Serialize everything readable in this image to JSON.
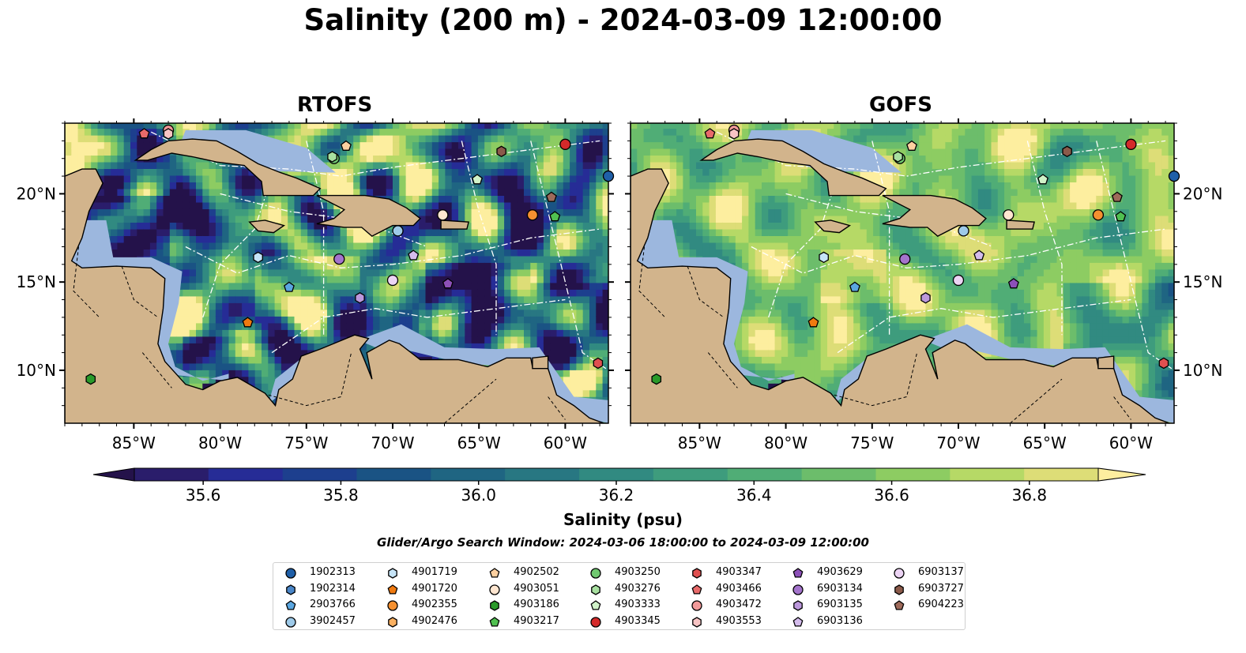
{
  "title": "Salinity (200 m) - 2024-03-09 12:00:00",
  "colors": {
    "land": "#d2b48c",
    "shallow": "#9cb7de",
    "eez_lines": "#ffffff",
    "marker_edge": "#000000"
  },
  "chart_data": [
    {
      "type": "heatmap",
      "title": "RTOFS",
      "lon_range": [
        -89,
        -57.5
      ],
      "lat_range": [
        7,
        24
      ],
      "xticks": [
        "85°W",
        "80°W",
        "75°W",
        "70°W",
        "65°W",
        "60°W"
      ],
      "yticks": [
        "20°N",
        "15°N",
        "10°N"
      ],
      "ytick_side": "left",
      "field_character": "eddy-rich, ranging ~35.5 (deep blue) to ~36.9 (yellow)"
    },
    {
      "type": "heatmap",
      "title": "GOFS",
      "lon_range": [
        -89,
        -57.5
      ],
      "lat_range": [
        7,
        24
      ],
      "xticks": [
        "85°W",
        "80°W",
        "75°W",
        "70°W",
        "65°W",
        "60°W"
      ],
      "yticks": [
        "20°N",
        "15°N",
        "10°N"
      ],
      "ytick_side": "right",
      "field_character": "smoother, mostly ~36.4–36.8 (green-yellow)"
    }
  ],
  "colorbar": {
    "label": "Salinity (psu)",
    "min": 35.5,
    "max": 36.9,
    "extend": "both",
    "ticks": [
      "35.6",
      "35.8",
      "36.0",
      "36.2",
      "36.4",
      "36.6",
      "36.8"
    ],
    "colors": [
      "#2a1d6b",
      "#262c96",
      "#1d3f8e",
      "#1a5384",
      "#1f6582",
      "#287782",
      "#318a81",
      "#3e9c7d",
      "#50ad76",
      "#6cbd6b",
      "#8dcc62",
      "#b6d966",
      "#dddd77"
    ],
    "under_color": "#24124a",
    "over_color": "#fdee9f"
  },
  "search_window": "Glider/Argo Search Window: 2024-03-06 18:00:00 to 2024-03-09 12:00:00",
  "floats": [
    {
      "id": "1902313",
      "marker": "circle",
      "color": "#1f5fa8",
      "lon": -57.5,
      "lat": 21.0
    },
    {
      "id": "1902314",
      "marker": "hexagon",
      "color": "#4a86c8",
      "lon": null,
      "lat": null
    },
    {
      "id": "2903766",
      "marker": "pentagon",
      "color": "#5aa6e0",
      "lon": -76.0,
      "lat": 14.7
    },
    {
      "id": "3902457",
      "marker": "circle",
      "color": "#9ecae9",
      "lon": -69.7,
      "lat": 17.9
    },
    {
      "id": "4901719",
      "marker": "hexagon",
      "color": "#c6e4f7",
      "lon": -77.8,
      "lat": 16.4
    },
    {
      "id": "4901720",
      "marker": "pentagon",
      "color": "#f07a10",
      "lon": -78.4,
      "lat": 12.7
    },
    {
      "id": "4902355",
      "marker": "circle",
      "color": "#f59030",
      "lon": -61.9,
      "lat": 18.8
    },
    {
      "id": "4902476",
      "marker": "hexagon",
      "color": "#fbb060",
      "lon": null,
      "lat": null
    },
    {
      "id": "4902502",
      "marker": "pentagon",
      "color": "#fdd0a0",
      "lon": -72.7,
      "lat": 22.7
    },
    {
      "id": "4903051",
      "marker": "circle",
      "color": "#ffe6d0",
      "lon": -67.1,
      "lat": 18.8
    },
    {
      "id": "4903186",
      "marker": "hexagon",
      "color": "#2a9a2a",
      "lon": -87.5,
      "lat": 9.5
    },
    {
      "id": "4903217",
      "marker": "pentagon",
      "color": "#50c050",
      "lon": -60.6,
      "lat": 18.7
    },
    {
      "id": "4903250",
      "marker": "circle",
      "color": "#70c870",
      "lon": -73.4,
      "lat": 22.0
    },
    {
      "id": "4903276",
      "marker": "hexagon",
      "color": "#a8e0a0",
      "lon": -73.5,
      "lat": 22.1
    },
    {
      "id": "4903333",
      "marker": "pentagon",
      "color": "#d0f2c8",
      "lon": -65.1,
      "lat": 20.8
    },
    {
      "id": "4903345",
      "marker": "circle",
      "color": "#d42a2a",
      "lon": -60.0,
      "lat": 22.8
    },
    {
      "id": "4903347",
      "marker": "hexagon",
      "color": "#e05050",
      "lon": -58.1,
      "lat": 10.4
    },
    {
      "id": "4903466",
      "marker": "pentagon",
      "color": "#e86a6a",
      "lon": -84.4,
      "lat": 23.4
    },
    {
      "id": "4903472",
      "marker": "circle",
      "color": "#f29a9a",
      "lon": -83.0,
      "lat": 23.6
    },
    {
      "id": "4903553",
      "marker": "hexagon",
      "color": "#f8c4c4",
      "lon": -83.0,
      "lat": 23.4
    },
    {
      "id": "4903629",
      "marker": "pentagon",
      "color": "#8c50b8",
      "lon": -66.8,
      "lat": 14.9
    },
    {
      "id": "6903134",
      "marker": "circle",
      "color": "#a474cc",
      "lon": -73.1,
      "lat": 16.3
    },
    {
      "id": "6903135",
      "marker": "hexagon",
      "color": "#bc98dc",
      "lon": -71.9,
      "lat": 14.1
    },
    {
      "id": "6903136",
      "marker": "pentagon",
      "color": "#d4bcec",
      "lon": -68.8,
      "lat": 16.5
    },
    {
      "id": "6903137",
      "marker": "circle",
      "color": "#ecd4f4",
      "lon": -70.0,
      "lat": 15.1
    },
    {
      "id": "6903727",
      "marker": "hexagon",
      "color": "#8b5a4a",
      "lon": -63.7,
      "lat": 22.4
    },
    {
      "id": "6904223",
      "marker": "pentagon",
      "color": "#9e6a5a",
      "lon": -60.8,
      "lat": 19.8
    }
  ]
}
